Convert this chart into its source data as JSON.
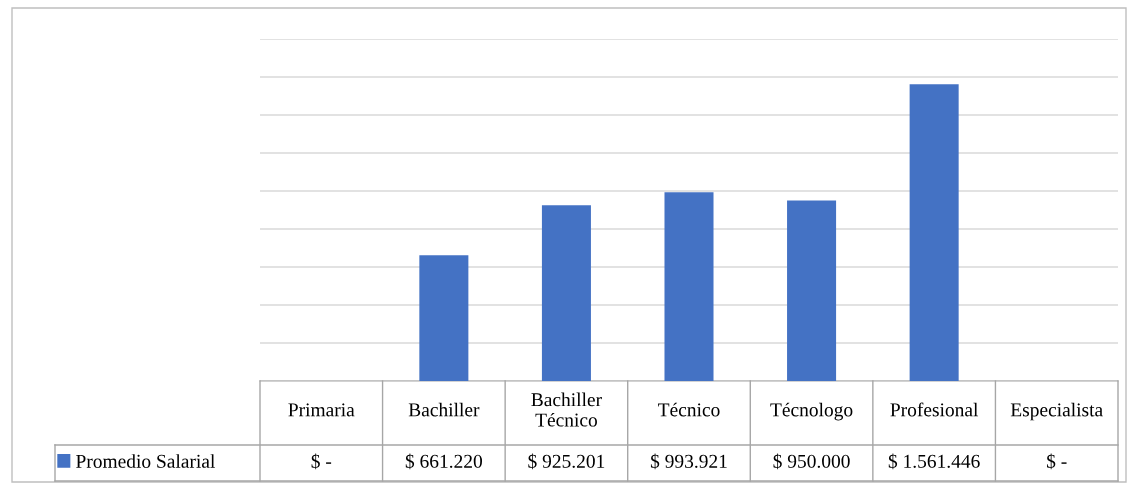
{
  "chart_data": {
    "type": "bar",
    "categories": [
      "Primaria",
      "Bachiller",
      "Bachiller\nTécnico",
      "Técnico",
      "Técnologo",
      "Profesional",
      "Especialista"
    ],
    "series": [
      {
        "name": "Promedio Salarial",
        "color": "#4472c4",
        "values": [
          0,
          661220,
          925201,
          993921,
          950000,
          1561446,
          0
        ],
        "value_labels": [
          "$ -",
          "$ 661.220",
          "$ 925.201",
          "$ 993.921",
          "$ 950.000",
          "$ 1.561.446",
          "$ -"
        ]
      }
    ],
    "ylim": [
      0,
      1800000
    ],
    "yticks": [
      {
        "value": 0,
        "label": null
      },
      {
        "value": 200000,
        "label": null
      },
      {
        "value": 400000,
        "label": null
      },
      {
        "value": 600000,
        "label": null
      },
      {
        "value": 800000,
        "label": null
      },
      {
        "value": 1000000,
        "label": null
      },
      {
        "value": 1200000,
        "label": null
      },
      {
        "value": 1400000,
        "label": null
      },
      {
        "value": 1600000,
        "label": null
      },
      {
        "value": 1800000,
        "label": null
      }
    ],
    "grid": "y",
    "legend": "bottom"
  }
}
